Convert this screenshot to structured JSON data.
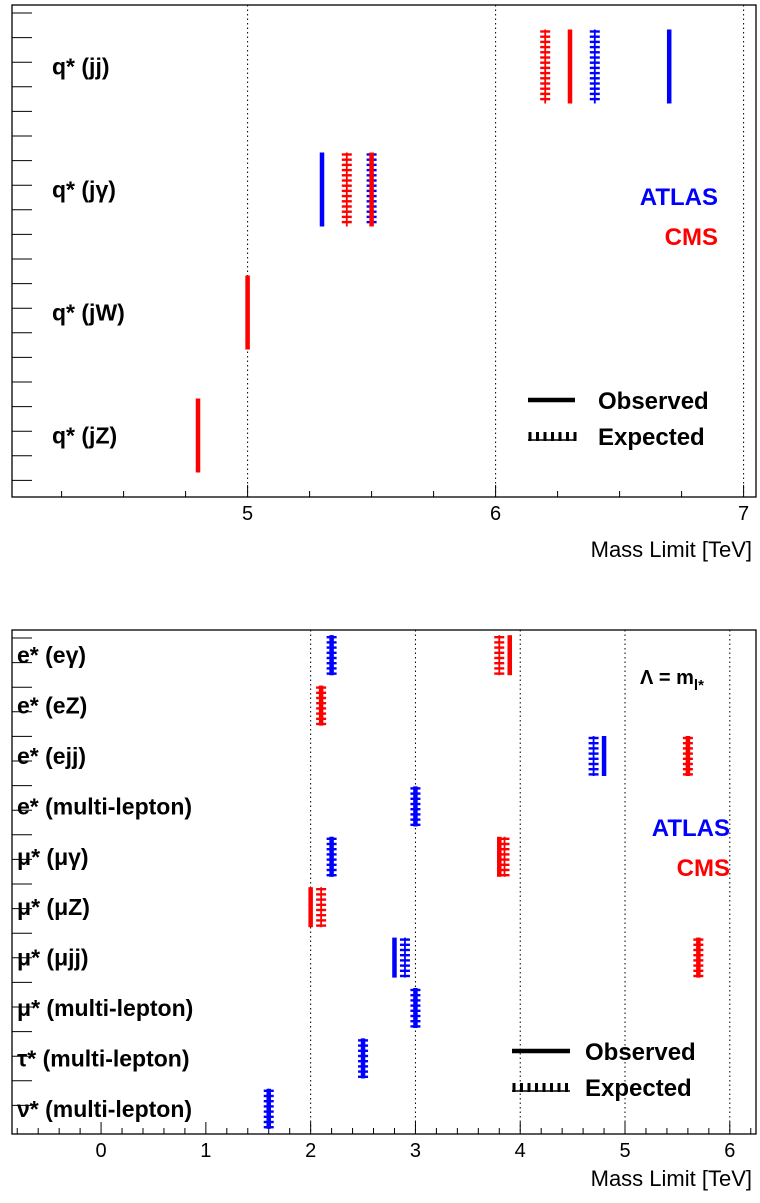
{
  "colors": {
    "ATLAS": "#0000ff",
    "CMS": "#ff0000",
    "frame": "#000000"
  },
  "chart_data": [
    {
      "type": "limit-chart",
      "xlabel": "Mass Limit [TeV]",
      "xlim": [
        4.05,
        7.05
      ],
      "xticks": [
        5,
        6,
        7
      ],
      "grid": "vertical dotted at major ticks",
      "categories": [
        "q* (jj)",
        "q* (jγ)",
        "q* (jW)",
        "q* (jZ)"
      ],
      "legend": {
        "experiments": [
          {
            "name": "ATLAS",
            "color": "#0000ff"
          },
          {
            "name": "CMS",
            "color": "#ff0000"
          }
        ],
        "observed_label": "Observed",
        "expected_label": "Expected"
      },
      "limits": [
        {
          "category": "q* (jj)",
          "experiment": "CMS",
          "kind": "expected",
          "value": 6.2
        },
        {
          "category": "q* (jj)",
          "experiment": "CMS",
          "kind": "observed",
          "value": 6.3
        },
        {
          "category": "q* (jj)",
          "experiment": "ATLAS",
          "kind": "expected",
          "value": 6.4
        },
        {
          "category": "q* (jj)",
          "experiment": "ATLAS",
          "kind": "observed",
          "value": 6.7
        },
        {
          "category": "q* (jγ)",
          "experiment": "ATLAS",
          "kind": "observed",
          "value": 5.3
        },
        {
          "category": "q* (jγ)",
          "experiment": "CMS",
          "kind": "expected",
          "value": 5.4
        },
        {
          "category": "q* (jγ)",
          "experiment": "ATLAS",
          "kind": "expected",
          "value": 5.5
        },
        {
          "category": "q* (jγ)",
          "experiment": "CMS",
          "kind": "observed",
          "value": 5.5
        },
        {
          "category": "q* (jW)",
          "experiment": "CMS",
          "kind": "observed",
          "value": 5.0
        },
        {
          "category": "q* (jZ)",
          "experiment": "CMS",
          "kind": "observed",
          "value": 4.8
        }
      ]
    },
    {
      "type": "limit-chart",
      "xlabel": "Mass Limit [TeV]",
      "xlim": [
        -0.85,
        6.25
      ],
      "xticks": [
        0,
        1,
        2,
        3,
        4,
        5,
        6
      ],
      "grid": "vertical dotted at 2, 3, 4, 5, 6",
      "annotation": "Λ = m_l*",
      "categories": [
        "e* (eγ)",
        "e* (eZ)",
        "e* (ejj)",
        "e* (multi-lepton)",
        "μ* (μγ)",
        "μ* (μZ)",
        "μ* (μjj)",
        "μ* (multi-lepton)",
        "τ* (multi-lepton)",
        "ν* (multi-lepton)"
      ],
      "legend": {
        "experiments": [
          {
            "name": "ATLAS",
            "color": "#0000ff"
          },
          {
            "name": "CMS",
            "color": "#ff0000"
          }
        ],
        "observed_label": "Observed",
        "expected_label": "Expected"
      },
      "limits": [
        {
          "category": "e* (eγ)",
          "experiment": "ATLAS",
          "kind": "observed",
          "value": 2.2
        },
        {
          "category": "e* (eγ)",
          "experiment": "ATLAS",
          "kind": "expected",
          "value": 2.2
        },
        {
          "category": "e* (eγ)",
          "experiment": "CMS",
          "kind": "expected",
          "value": 3.8
        },
        {
          "category": "e* (eγ)",
          "experiment": "CMS",
          "kind": "observed",
          "value": 3.9
        },
        {
          "category": "e* (eZ)",
          "experiment": "CMS",
          "kind": "observed",
          "value": 2.1
        },
        {
          "category": "e* (eZ)",
          "experiment": "CMS",
          "kind": "expected",
          "value": 2.1
        },
        {
          "category": "e* (ejj)",
          "experiment": "ATLAS",
          "kind": "expected",
          "value": 4.7
        },
        {
          "category": "e* (ejj)",
          "experiment": "ATLAS",
          "kind": "observed",
          "value": 4.8
        },
        {
          "category": "e* (ejj)",
          "experiment": "CMS",
          "kind": "observed",
          "value": 5.6
        },
        {
          "category": "e* (ejj)",
          "experiment": "CMS",
          "kind": "expected",
          "value": 5.6
        },
        {
          "category": "e* (multi-lepton)",
          "experiment": "ATLAS",
          "kind": "observed",
          "value": 3.0
        },
        {
          "category": "e* (multi-lepton)",
          "experiment": "ATLAS",
          "kind": "expected",
          "value": 3.0
        },
        {
          "category": "μ* (μγ)",
          "experiment": "ATLAS",
          "kind": "observed",
          "value": 2.2
        },
        {
          "category": "μ* (μγ)",
          "experiment": "ATLAS",
          "kind": "expected",
          "value": 2.2
        },
        {
          "category": "μ* (μγ)",
          "experiment": "CMS",
          "kind": "observed",
          "value": 3.8
        },
        {
          "category": "μ* (μγ)",
          "experiment": "CMS",
          "kind": "expected",
          "value": 3.85
        },
        {
          "category": "μ* (μZ)",
          "experiment": "CMS",
          "kind": "observed",
          "value": 2.0
        },
        {
          "category": "μ* (μZ)",
          "experiment": "CMS",
          "kind": "expected",
          "value": 2.1
        },
        {
          "category": "μ* (μjj)",
          "experiment": "ATLAS",
          "kind": "observed",
          "value": 2.8
        },
        {
          "category": "μ* (μjj)",
          "experiment": "ATLAS",
          "kind": "expected",
          "value": 2.9
        },
        {
          "category": "μ* (μjj)",
          "experiment": "CMS",
          "kind": "observed",
          "value": 5.7
        },
        {
          "category": "μ* (μjj)",
          "experiment": "CMS",
          "kind": "expected",
          "value": 5.7
        },
        {
          "category": "μ* (multi-lepton)",
          "experiment": "ATLAS",
          "kind": "observed",
          "value": 3.0
        },
        {
          "category": "μ* (multi-lepton)",
          "experiment": "ATLAS",
          "kind": "expected",
          "value": 3.0
        },
        {
          "category": "τ* (multi-lepton)",
          "experiment": "ATLAS",
          "kind": "observed",
          "value": 2.5
        },
        {
          "category": "τ* (multi-lepton)",
          "experiment": "ATLAS",
          "kind": "expected",
          "value": 2.5
        },
        {
          "category": "ν* (multi-lepton)",
          "experiment": "ATLAS",
          "kind": "observed",
          "value": 1.6
        },
        {
          "category": "ν* (multi-lepton)",
          "experiment": "ATLAS",
          "kind": "expected",
          "value": 1.6
        }
      ]
    }
  ]
}
